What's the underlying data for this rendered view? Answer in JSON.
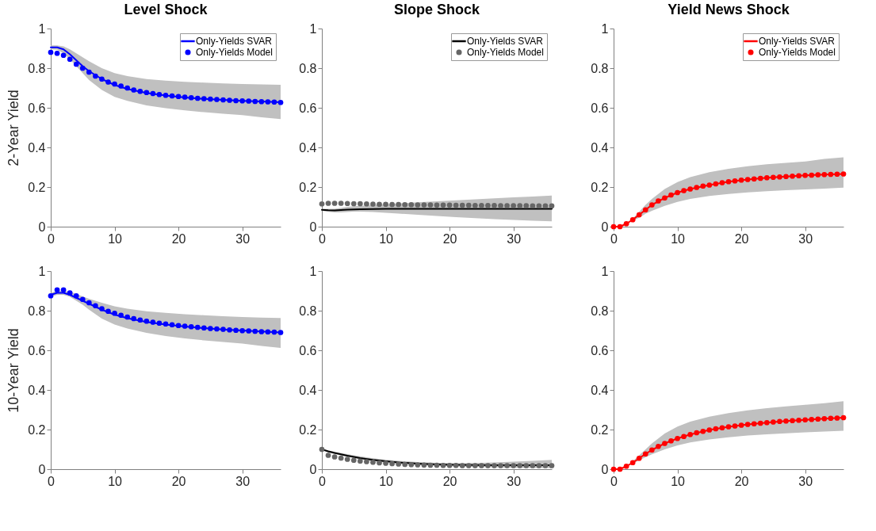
{
  "chart_data": [
    {
      "type": "line",
      "title": "Level Shock",
      "ylabel": "2-Year Yield",
      "xlim": [
        0,
        36
      ],
      "xticks": [
        0,
        10,
        20,
        30
      ],
      "ylim": [
        0,
        1
      ],
      "yticks": [
        0,
        0.2,
        0.4,
        0.6,
        0.8,
        1
      ],
      "legend": "top right",
      "series": [
        {
          "name": "Only-Yields SVAR",
          "type": "line",
          "color": "#0000ff",
          "x": [
            0,
            1,
            2,
            3,
            4,
            5,
            6,
            8,
            10,
            12,
            15,
            18,
            21,
            24,
            27,
            30,
            33,
            36
          ],
          "values": [
            0.905,
            0.905,
            0.895,
            0.87,
            0.84,
            0.81,
            0.785,
            0.745,
            0.715,
            0.695,
            0.675,
            0.662,
            0.652,
            0.645,
            0.64,
            0.635,
            0.632,
            0.628
          ],
          "lower": [
            0.895,
            0.893,
            0.875,
            0.845,
            0.81,
            0.775,
            0.74,
            0.69,
            0.655,
            0.635,
            0.612,
            0.598,
            0.587,
            0.578,
            0.57,
            0.563,
            0.552,
            0.543
          ],
          "upper": [
            0.915,
            0.915,
            0.91,
            0.895,
            0.875,
            0.855,
            0.835,
            0.8,
            0.775,
            0.76,
            0.745,
            0.737,
            0.731,
            0.727,
            0.723,
            0.72,
            0.718,
            0.716
          ]
        },
        {
          "name": "Only-Yields Model",
          "type": "scatter",
          "marker": "circle",
          "color": "#0000ff",
          "x": [
            0,
            1,
            2,
            3,
            4,
            5,
            6,
            7,
            8,
            9,
            10,
            11,
            12,
            13,
            14,
            15,
            16,
            17,
            18,
            19,
            20,
            21,
            22,
            23,
            24,
            25,
            26,
            27,
            28,
            29,
            30,
            31,
            32,
            33,
            34,
            35,
            36
          ],
          "values": [
            0.88,
            0.875,
            0.865,
            0.845,
            0.82,
            0.8,
            0.78,
            0.76,
            0.745,
            0.73,
            0.72,
            0.71,
            0.7,
            0.69,
            0.683,
            0.677,
            0.672,
            0.667,
            0.663,
            0.66,
            0.657,
            0.654,
            0.651,
            0.648,
            0.646,
            0.644,
            0.642,
            0.64,
            0.638,
            0.636,
            0.635,
            0.634,
            0.632,
            0.631,
            0.63,
            0.629,
            0.627
          ]
        }
      ]
    },
    {
      "type": "line",
      "title": "Slope Shock",
      "xlim": [
        0,
        36
      ],
      "xticks": [
        0,
        10,
        20,
        30
      ],
      "ylim": [
        0,
        1
      ],
      "yticks": [
        0,
        0.2,
        0.4,
        0.6,
        0.8,
        1
      ],
      "legend": "top right",
      "series": [
        {
          "name": "Only-Yields SVAR",
          "type": "line",
          "color": "#000000",
          "x": [
            0,
            1,
            2,
            3,
            4,
            5,
            6,
            8,
            10,
            12,
            15,
            18,
            21,
            24,
            27,
            30,
            33,
            36
          ],
          "values": [
            0.085,
            0.083,
            0.082,
            0.084,
            0.086,
            0.087,
            0.088,
            0.089,
            0.09,
            0.09,
            0.09,
            0.09,
            0.09,
            0.09,
            0.09,
            0.09,
            0.09,
            0.09
          ],
          "lower": [
            0.08,
            0.075,
            0.072,
            0.072,
            0.074,
            0.076,
            0.076,
            0.074,
            0.07,
            0.066,
            0.06,
            0.054,
            0.048,
            0.043,
            0.038,
            0.034,
            0.03,
            0.027
          ],
          "upper": [
            0.09,
            0.09,
            0.09,
            0.095,
            0.1,
            0.103,
            0.105,
            0.11,
            0.113,
            0.117,
            0.123,
            0.128,
            0.133,
            0.138,
            0.143,
            0.148,
            0.152,
            0.157
          ]
        },
        {
          "name": "Only-Yields Model",
          "type": "scatter",
          "marker": "circle",
          "color": "#666666",
          "x": [
            0,
            1,
            2,
            3,
            4,
            5,
            6,
            7,
            8,
            9,
            10,
            11,
            12,
            13,
            14,
            15,
            16,
            17,
            18,
            19,
            20,
            21,
            22,
            23,
            24,
            25,
            26,
            27,
            28,
            29,
            30,
            31,
            32,
            33,
            34,
            35,
            36
          ],
          "values": [
            0.115,
            0.118,
            0.118,
            0.118,
            0.117,
            0.116,
            0.116,
            0.115,
            0.114,
            0.113,
            0.113,
            0.112,
            0.112,
            0.111,
            0.111,
            0.11,
            0.11,
            0.11,
            0.109,
            0.109,
            0.109,
            0.108,
            0.108,
            0.108,
            0.107,
            0.107,
            0.107,
            0.107,
            0.106,
            0.106,
            0.106,
            0.106,
            0.106,
            0.105,
            0.105,
            0.105,
            0.105
          ]
        }
      ]
    },
    {
      "type": "line",
      "title": "Yield News Shock",
      "xlim": [
        0,
        36
      ],
      "xticks": [
        0,
        10,
        20,
        30
      ],
      "ylim": [
        0,
        1
      ],
      "yticks": [
        0,
        0.2,
        0.4,
        0.6,
        0.8,
        1
      ],
      "legend": "top right",
      "series": [
        {
          "name": "Only-Yields SVAR",
          "type": "line",
          "color": "#ff0000",
          "x": [
            0,
            1,
            2,
            3,
            4,
            5,
            6,
            8,
            10,
            12,
            15,
            18,
            21,
            24,
            27,
            30,
            33,
            36
          ],
          "values": [
            0,
            0,
            0.015,
            0.035,
            0.06,
            0.085,
            0.11,
            0.145,
            0.172,
            0.19,
            0.21,
            0.227,
            0.238,
            0.247,
            0.253,
            0.259,
            0.263,
            0.266
          ],
          "lower": [
            0,
            0,
            0.012,
            0.03,
            0.045,
            0.065,
            0.08,
            0.105,
            0.125,
            0.14,
            0.155,
            0.165,
            0.173,
            0.179,
            0.184,
            0.188,
            0.192,
            0.197
          ],
          "upper": [
            0,
            0,
            0.015,
            0.04,
            0.075,
            0.11,
            0.14,
            0.19,
            0.225,
            0.25,
            0.275,
            0.292,
            0.305,
            0.315,
            0.322,
            0.329,
            0.342,
            0.35
          ]
        },
        {
          "name": "Only-Yields Model",
          "type": "scatter",
          "marker": "circle",
          "color": "#ff0000",
          "x": [
            0,
            1,
            2,
            3,
            4,
            5,
            6,
            7,
            8,
            9,
            10,
            11,
            12,
            13,
            14,
            15,
            16,
            17,
            18,
            19,
            20,
            21,
            22,
            23,
            24,
            25,
            26,
            27,
            28,
            29,
            30,
            31,
            32,
            33,
            34,
            35,
            36
          ],
          "values": [
            0,
            0,
            0.015,
            0.035,
            0.06,
            0.085,
            0.11,
            0.13,
            0.145,
            0.16,
            0.172,
            0.182,
            0.19,
            0.198,
            0.205,
            0.21,
            0.216,
            0.222,
            0.227,
            0.231,
            0.235,
            0.238,
            0.241,
            0.244,
            0.247,
            0.249,
            0.251,
            0.253,
            0.255,
            0.257,
            0.259,
            0.26,
            0.262,
            0.263,
            0.264,
            0.265,
            0.266
          ]
        }
      ]
    },
    {
      "type": "line",
      "ylabel": "10-Year Yield",
      "xlim": [
        0,
        36
      ],
      "xticks": [
        0,
        10,
        20,
        30
      ],
      "ylim": [
        0,
        1
      ],
      "yticks": [
        0,
        0.2,
        0.4,
        0.6,
        0.8,
        1
      ],
      "series": [
        {
          "type": "line",
          "color": "#0000ff",
          "x": [
            0,
            1,
            2,
            3,
            4,
            5,
            6,
            8,
            10,
            12,
            15,
            18,
            21,
            24,
            27,
            30,
            33,
            36
          ],
          "values": [
            0.88,
            0.89,
            0.89,
            0.88,
            0.865,
            0.85,
            0.835,
            0.805,
            0.78,
            0.762,
            0.743,
            0.73,
            0.72,
            0.712,
            0.705,
            0.7,
            0.695,
            0.69
          ],
          "lower": [
            0.87,
            0.88,
            0.88,
            0.87,
            0.85,
            0.83,
            0.805,
            0.76,
            0.73,
            0.71,
            0.688,
            0.672,
            0.66,
            0.65,
            0.642,
            0.634,
            0.622,
            0.612
          ],
          "upper": [
            0.89,
            0.9,
            0.9,
            0.895,
            0.885,
            0.872,
            0.86,
            0.84,
            0.822,
            0.81,
            0.797,
            0.789,
            0.782,
            0.777,
            0.772,
            0.768,
            0.765,
            0.763
          ]
        },
        {
          "type": "scatter",
          "marker": "circle",
          "color": "#0000ff",
          "x": [
            0,
            1,
            2,
            3,
            4,
            5,
            6,
            7,
            8,
            9,
            10,
            11,
            12,
            13,
            14,
            15,
            16,
            17,
            18,
            19,
            20,
            21,
            22,
            23,
            24,
            25,
            26,
            27,
            28,
            29,
            30,
            31,
            32,
            33,
            34,
            35,
            36
          ],
          "values": [
            0.875,
            0.905,
            0.905,
            0.89,
            0.875,
            0.857,
            0.84,
            0.825,
            0.81,
            0.797,
            0.787,
            0.777,
            0.768,
            0.76,
            0.753,
            0.747,
            0.742,
            0.737,
            0.733,
            0.729,
            0.725,
            0.722,
            0.719,
            0.716,
            0.713,
            0.71,
            0.708,
            0.706,
            0.703,
            0.701,
            0.699,
            0.698,
            0.696,
            0.694,
            0.693,
            0.692,
            0.69
          ]
        }
      ]
    },
    {
      "type": "line",
      "xlim": [
        0,
        36
      ],
      "xticks": [
        0,
        10,
        20,
        30
      ],
      "ylim": [
        0,
        1
      ],
      "yticks": [
        0,
        0.2,
        0.4,
        0.6,
        0.8,
        1
      ],
      "series": [
        {
          "type": "line",
          "color": "#000000",
          "x": [
            0,
            1,
            2,
            3,
            4,
            5,
            6,
            8,
            10,
            12,
            15,
            18,
            21,
            24,
            27,
            30,
            33,
            36
          ],
          "values": [
            0.1,
            0.09,
            0.082,
            0.075,
            0.068,
            0.062,
            0.056,
            0.047,
            0.04,
            0.034,
            0.028,
            0.024,
            0.022,
            0.021,
            0.02,
            0.02,
            0.02,
            0.02
          ],
          "lower": [
            0.1,
            0.085,
            0.077,
            0.07,
            0.063,
            0.056,
            0.05,
            0.04,
            0.033,
            0.027,
            0.021,
            0.017,
            0.014,
            0.012,
            0.01,
            0.008,
            0.007,
            0.006
          ],
          "upper": [
            0.1,
            0.095,
            0.088,
            0.082,
            0.076,
            0.07,
            0.065,
            0.055,
            0.048,
            0.042,
            0.036,
            0.032,
            0.03,
            0.031,
            0.034,
            0.038,
            0.042,
            0.047
          ]
        },
        {
          "type": "scatter",
          "marker": "circle",
          "color": "#666666",
          "x": [
            0,
            1,
            2,
            3,
            4,
            5,
            6,
            7,
            8,
            9,
            10,
            11,
            12,
            13,
            14,
            15,
            16,
            17,
            18,
            19,
            20,
            21,
            22,
            23,
            24,
            25,
            26,
            27,
            28,
            29,
            30,
            31,
            32,
            33,
            34,
            35,
            36
          ],
          "values": [
            0.1,
            0.07,
            0.062,
            0.056,
            0.05,
            0.045,
            0.041,
            0.038,
            0.035,
            0.032,
            0.03,
            0.028,
            0.026,
            0.024,
            0.023,
            0.022,
            0.021,
            0.02,
            0.02,
            0.019,
            0.019,
            0.019,
            0.018,
            0.018,
            0.018,
            0.018,
            0.018,
            0.018,
            0.018,
            0.018,
            0.018,
            0.018,
            0.018,
            0.018,
            0.018,
            0.018,
            0.018
          ]
        }
      ]
    },
    {
      "type": "line",
      "xlim": [
        0,
        36
      ],
      "xticks": [
        0,
        10,
        20,
        30
      ],
      "ylim": [
        0,
        1
      ],
      "yticks": [
        0,
        0.2,
        0.4,
        0.6,
        0.8,
        1
      ],
      "series": [
        {
          "type": "line",
          "color": "#ff0000",
          "x": [
            0,
            1,
            2,
            3,
            4,
            5,
            6,
            8,
            10,
            12,
            15,
            18,
            21,
            24,
            27,
            30,
            33,
            36
          ],
          "values": [
            0,
            0,
            0.015,
            0.033,
            0.055,
            0.077,
            0.097,
            0.13,
            0.155,
            0.175,
            0.198,
            0.214,
            0.226,
            0.235,
            0.243,
            0.249,
            0.255,
            0.26
          ],
          "lower": [
            0,
            0,
            0.012,
            0.028,
            0.045,
            0.06,
            0.075,
            0.1,
            0.12,
            0.135,
            0.15,
            0.161,
            0.17,
            0.176,
            0.181,
            0.186,
            0.19,
            0.194
          ],
          "upper": [
            0,
            0,
            0.015,
            0.04,
            0.07,
            0.1,
            0.13,
            0.18,
            0.215,
            0.24,
            0.265,
            0.283,
            0.297,
            0.308,
            0.317,
            0.325,
            0.333,
            0.343
          ]
        },
        {
          "type": "scatter",
          "marker": "circle",
          "color": "#ff0000",
          "x": [
            0,
            1,
            2,
            3,
            4,
            5,
            6,
            7,
            8,
            9,
            10,
            11,
            12,
            13,
            14,
            15,
            16,
            17,
            18,
            19,
            20,
            21,
            22,
            23,
            24,
            25,
            26,
            27,
            28,
            29,
            30,
            31,
            32,
            33,
            34,
            35,
            36
          ],
          "values": [
            0,
            0,
            0.015,
            0.033,
            0.055,
            0.077,
            0.097,
            0.115,
            0.13,
            0.143,
            0.155,
            0.165,
            0.175,
            0.184,
            0.191,
            0.198,
            0.204,
            0.209,
            0.214,
            0.218,
            0.222,
            0.226,
            0.229,
            0.232,
            0.235,
            0.238,
            0.241,
            0.243,
            0.245,
            0.247,
            0.249,
            0.251,
            0.253,
            0.255,
            0.257,
            0.258,
            0.26
          ]
        }
      ]
    }
  ]
}
